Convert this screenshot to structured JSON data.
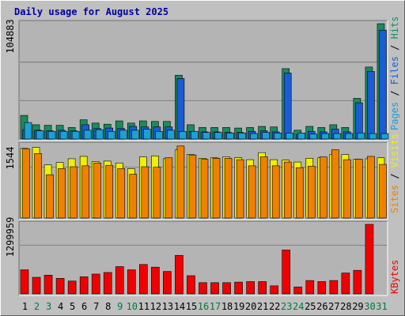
{
  "chart_data": {
    "type": "bar",
    "title": "Daily usage for August 2025",
    "categories": [
      "1",
      "2",
      "3",
      "4",
      "5",
      "6",
      "7",
      "8",
      "9",
      "10",
      "11",
      "12",
      "13",
      "14",
      "15",
      "16",
      "17",
      "18",
      "19",
      "20",
      "21",
      "22",
      "23",
      "24",
      "25",
      "26",
      "27",
      "28",
      "29",
      "30",
      "31"
    ],
    "weekend_days": [
      "2",
      "3",
      "9",
      "10",
      "16",
      "17",
      "23",
      "24",
      "30",
      "31"
    ],
    "colors": {
      "background": "#c0c0c0",
      "plot_bg": "#b4b4b4",
      "title": "#0000a0",
      "weekday_tick": "#000000",
      "weekend_tick": "#007a3d",
      "pages": "#1aa1d6",
      "files": "#1a5cd6",
      "hits": "#1a8c5c",
      "sites": "#f08000",
      "visits": "#f0f000",
      "kbytes": "#f00000"
    },
    "panels": [
      {
        "name": "pages_files_hits",
        "y_max_label": "104883",
        "ylim": [
          0,
          104883
        ],
        "legend": [
          {
            "label": "Pages",
            "color": "#1aa1d6"
          },
          {
            "label": "Files",
            "color": "#1a5cd6"
          },
          {
            "label": "Hits",
            "color": "#1a8c5c"
          }
        ],
        "series": [
          {
            "name": "Hits",
            "values": [
              21500,
              13000,
              12500,
              12500,
              10500,
              17500,
              14500,
              13500,
              16500,
              14500,
              16500,
              16000,
              16000,
              58000,
              13000,
              10500,
              10500,
              10500,
              10000,
              10500,
              11500,
              11000,
              64000,
              8000,
              11500,
              10500,
              13000,
              10500,
              37000,
              65500,
              104883
            ]
          },
          {
            "name": "Files",
            "values": [
              8500,
              8000,
              7500,
              8000,
              7500,
              13000,
              9500,
              10000,
              9500,
              11500,
              11000,
              11000,
              11000,
              55000,
              7000,
              6500,
              6500,
              6000,
              6000,
              7000,
              7500,
              6500,
              60000,
              4000,
              7000,
              6500,
              9000,
              6500,
              33000,
              61500,
              99000
            ]
          },
          {
            "name": "Pages",
            "values": [
              15000,
              7500,
              7000,
              7000,
              7000,
              8000,
              8500,
              7000,
              8000,
              8000,
              9000,
              7000,
              8000,
              7000,
              7000,
              6000,
              6000,
              5500,
              5500,
              5000,
              6000,
              5500,
              5500,
              5500,
              4500,
              5000,
              5000,
              5000,
              5500,
              5000,
              5000
            ]
          }
        ]
      },
      {
        "name": "visits_sites",
        "y_max_label": "1544",
        "ylim": [
          0,
          1544
        ],
        "legend": [
          {
            "label": "Sites",
            "color": "#f08000"
          },
          {
            "label": "Visits",
            "color": "#f0f000"
          }
        ],
        "series": [
          {
            "name": "Visits",
            "values": [
              1480,
              1500,
              1130,
              1180,
              1260,
              1310,
              1200,
              1210,
              1170,
              1050,
              1300,
              1320,
              1260,
              1450,
              1350,
              1270,
              1280,
              1300,
              1280,
              1240,
              1390,
              1240,
              1230,
              1190,
              1270,
              1280,
              1350,
              1350,
              1250,
              1260,
              1280
            ]
          },
          {
            "name": "Sites",
            "values": [
              1470,
              1370,
              920,
              1050,
              1090,
              1110,
              1170,
              1120,
              1050,
              930,
              1090,
              1080,
              1280,
              1530,
              1340,
              1250,
              1270,
              1270,
              1240,
              1110,
              1300,
              1110,
              1190,
              1070,
              1100,
              1300,
              1450,
              1240,
              1250,
              1310,
              1140
            ]
          }
        ]
      },
      {
        "name": "kbytes",
        "y_max_label": "1299959",
        "ylim": [
          0,
          1299959
        ],
        "legend": [
          {
            "label": "KBytes",
            "color": "#f00000"
          }
        ],
        "series": [
          {
            "name": "KBytes",
            "values": [
              450000,
              310000,
              350000,
              290000,
              240000,
              320000,
              370000,
              400000,
              510000,
              450000,
              550000,
              500000,
              420000,
              720000,
              340000,
              210000,
              210000,
              210000,
              220000,
              230000,
              230000,
              150000,
              820000,
              130000,
              250000,
              230000,
              250000,
              390000,
              440000,
              1299959,
              0
            ]
          }
        ]
      }
    ]
  }
}
